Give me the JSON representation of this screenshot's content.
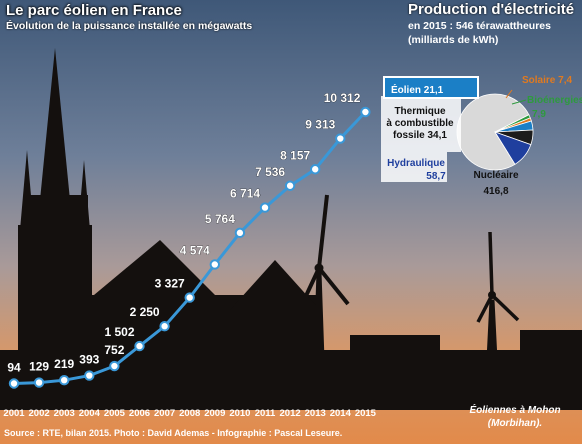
{
  "header": {
    "title": "Le parc éolien en France",
    "subtitle": "Évolution de la puissance installée en mégawatts"
  },
  "production": {
    "title": "Production d'électricité",
    "subtitle_line1": "en 2015 : 546 térawattheures",
    "subtitle_line2": "(milliards de kWh)"
  },
  "footer": {
    "source": "Source : RTE, bilan 2015. Photo : David Ademas - Infographie : Pascal Leseure.",
    "caption_line1": "Éoliennes à Mohon",
    "caption_line2": "(Morbihan)."
  },
  "colors": {
    "line": "#3a98d8",
    "marker_fill": "#ffffff",
    "eolien_box": "#1b7fc6",
    "nucleaire": "#d9d9d9",
    "thermique": "#1c1c1c",
    "hydraulique": "#1f3f9e",
    "solaire": "#e07a20",
    "bioenergies": "#2e9a3e"
  },
  "chart_data": [
    {
      "type": "line",
      "title": "Le parc éolien en France",
      "subtitle": "Évolution de la puissance installée en mégawatts",
      "x": [
        "2001",
        "2002",
        "2003",
        "2004",
        "2005",
        "2006",
        "2007",
        "2008",
        "2009",
        "2010",
        "2011",
        "2012",
        "2013",
        "2014",
        "2015"
      ],
      "values": [
        94,
        129,
        219,
        393,
        752,
        1502,
        2250,
        3327,
        4574,
        5764,
        6714,
        7536,
        8157,
        9313,
        10312
      ],
      "labels": [
        "94",
        "129",
        "219",
        "393",
        "752",
        "1 502",
        "2 250",
        "3 327",
        "4 574",
        "5 764",
        "6 714",
        "7 536",
        "8 157",
        "9 313",
        "10 312"
      ],
      "ylim": [
        0,
        10312
      ]
    },
    {
      "type": "pie",
      "title": "Production d'électricité",
      "subtitle": "en 2015 : 546 térawattheures (milliards de kWh)",
      "slices": [
        {
          "label": "Nucléaire",
          "value": 416.8,
          "value_label": "416,8",
          "color": "#d9d9d9"
        },
        {
          "label": "Bioénergies",
          "value": 7.9,
          "value_label": "7,9",
          "color": "#2e9a3e"
        },
        {
          "label": "Solaire",
          "value": 7.4,
          "value_label": "7,4",
          "color": "#e07a20"
        },
        {
          "label": "Éolien",
          "value": 21.1,
          "value_label": "21,1",
          "color": "#1b7fc6"
        },
        {
          "label": "Thermique à combustible fossile",
          "value": 34.1,
          "value_label": "34,1",
          "color": "#1c1c1c"
        },
        {
          "label": "Hydraulique",
          "value": 58.7,
          "value_label": "58,7",
          "color": "#1f3f9e"
        }
      ]
    }
  ]
}
